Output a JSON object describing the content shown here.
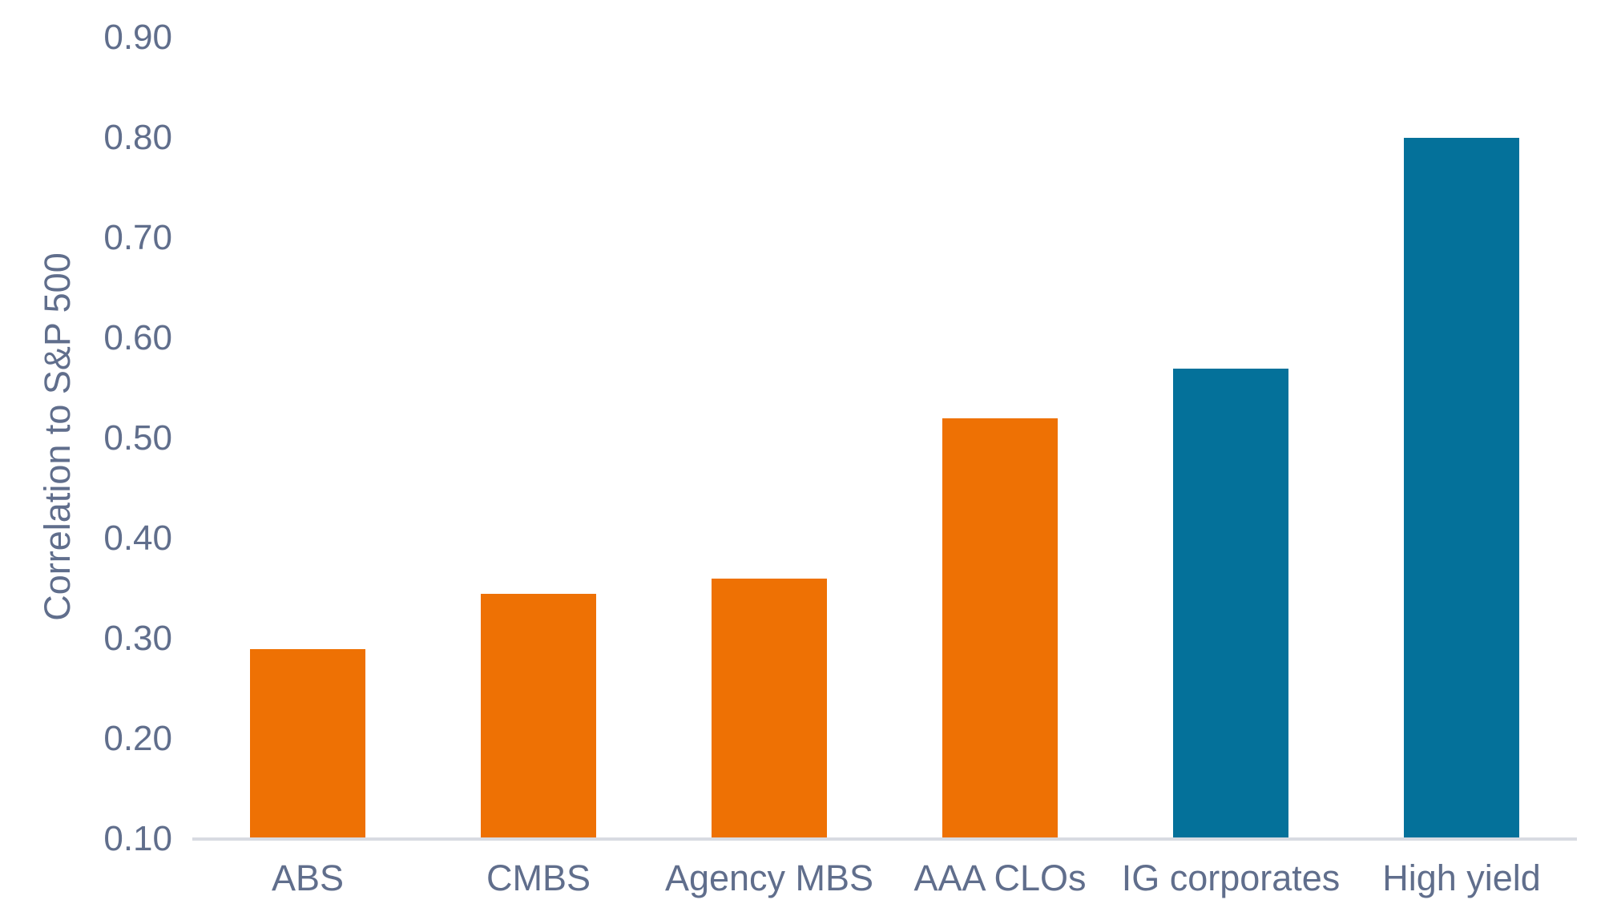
{
  "chart_data": {
    "type": "bar",
    "categories": [
      "ABS",
      "CMBS",
      "Agency MBS",
      "AAA CLOs",
      "IG corporates",
      "High yield"
    ],
    "values": [
      0.29,
      0.345,
      0.36,
      0.52,
      0.57,
      0.8
    ],
    "bar_color_keys": [
      "orange",
      "orange",
      "orange",
      "orange",
      "teal",
      "teal"
    ],
    "title": "",
    "xlabel": "",
    "ylabel": "Correlation to S&P 500",
    "ylim": [
      0.1,
      0.9
    ],
    "ytick_values": [
      0.1,
      0.2,
      0.3,
      0.4,
      0.5,
      0.6,
      0.7,
      0.8,
      0.9
    ],
    "ytick_labels": [
      "0.10",
      "0.20",
      "0.30",
      "0.40",
      "0.50",
      "0.60",
      "0.70",
      "0.80",
      "0.90"
    ],
    "grid": false,
    "legend": false,
    "orientation": "vertical"
  },
  "colors": {
    "orange": "#EE7104",
    "teal": "#04719A",
    "label_text": "#606E8C",
    "axis_line": "#D8DBE2",
    "background": "#FFFFFF"
  }
}
